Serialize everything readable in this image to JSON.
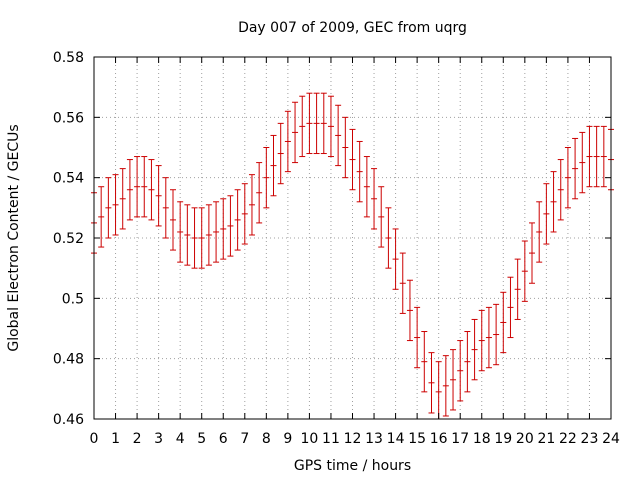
{
  "chart_data": {
    "type": "line",
    "title": "Day 007 of 2009, GEC from uqrg",
    "xlabel": "GPS time / hours",
    "ylabel": "Global Electron Content / GECUs",
    "xlim": [
      0,
      24
    ],
    "ylim": [
      0.46,
      0.58
    ],
    "x_ticks": [
      "0",
      "1",
      "2",
      "3",
      "4",
      "5",
      "6",
      "7",
      "8",
      "9",
      "10",
      "11",
      "12",
      "13",
      "14",
      "15",
      "16",
      "17",
      "18",
      "19",
      "20",
      "21",
      "22",
      "23",
      "24"
    ],
    "y_ticks": [
      "0.46",
      "0.48",
      "0.5",
      "0.52",
      "0.54",
      "0.56",
      "0.58"
    ],
    "grid": true,
    "series_color": "#cc0000",
    "grid_color": "#a0a0a0",
    "series": [
      {
        "name": "GEC",
        "error_bars": true,
        "x": [
          0,
          0.333,
          0.667,
          1,
          1.333,
          1.667,
          2,
          2.333,
          2.667,
          3,
          3.333,
          3.667,
          4,
          4.333,
          4.667,
          5,
          5.333,
          5.667,
          6,
          6.333,
          6.667,
          7,
          7.333,
          7.667,
          8,
          8.333,
          8.667,
          9,
          9.333,
          9.667,
          10,
          10.333,
          10.667,
          11,
          11.333,
          11.667,
          12,
          12.333,
          12.667,
          13,
          13.333,
          13.667,
          14,
          14.333,
          14.667,
          15,
          15.333,
          15.667,
          16,
          16.333,
          16.667,
          17,
          17.333,
          17.667,
          18,
          18.333,
          18.667,
          19,
          19.333,
          19.667,
          20,
          20.333,
          20.667,
          21,
          21.333,
          21.667,
          22,
          22.333,
          22.667,
          23,
          23.333,
          23.667,
          24
        ],
        "y": [
          0.525,
          0.527,
          0.53,
          0.531,
          0.533,
          0.536,
          0.537,
          0.537,
          0.536,
          0.534,
          0.53,
          0.526,
          0.522,
          0.521,
          0.52,
          0.52,
          0.521,
          0.522,
          0.523,
          0.524,
          0.526,
          0.528,
          0.531,
          0.535,
          0.54,
          0.544,
          0.548,
          0.552,
          0.555,
          0.557,
          0.558,
          0.558,
          0.558,
          0.557,
          0.554,
          0.55,
          0.546,
          0.542,
          0.537,
          0.533,
          0.527,
          0.52,
          0.513,
          0.505,
          0.496,
          0.487,
          0.479,
          0.472,
          0.469,
          0.471,
          0.473,
          0.476,
          0.479,
          0.483,
          0.486,
          0.487,
          0.488,
          0.492,
          0.497,
          0.503,
          0.509,
          0.515,
          0.522,
          0.528,
          0.532,
          0.536,
          0.54,
          0.543,
          0.545,
          0.547,
          0.547,
          0.547,
          0.546
        ],
        "error": 0.01
      }
    ]
  }
}
